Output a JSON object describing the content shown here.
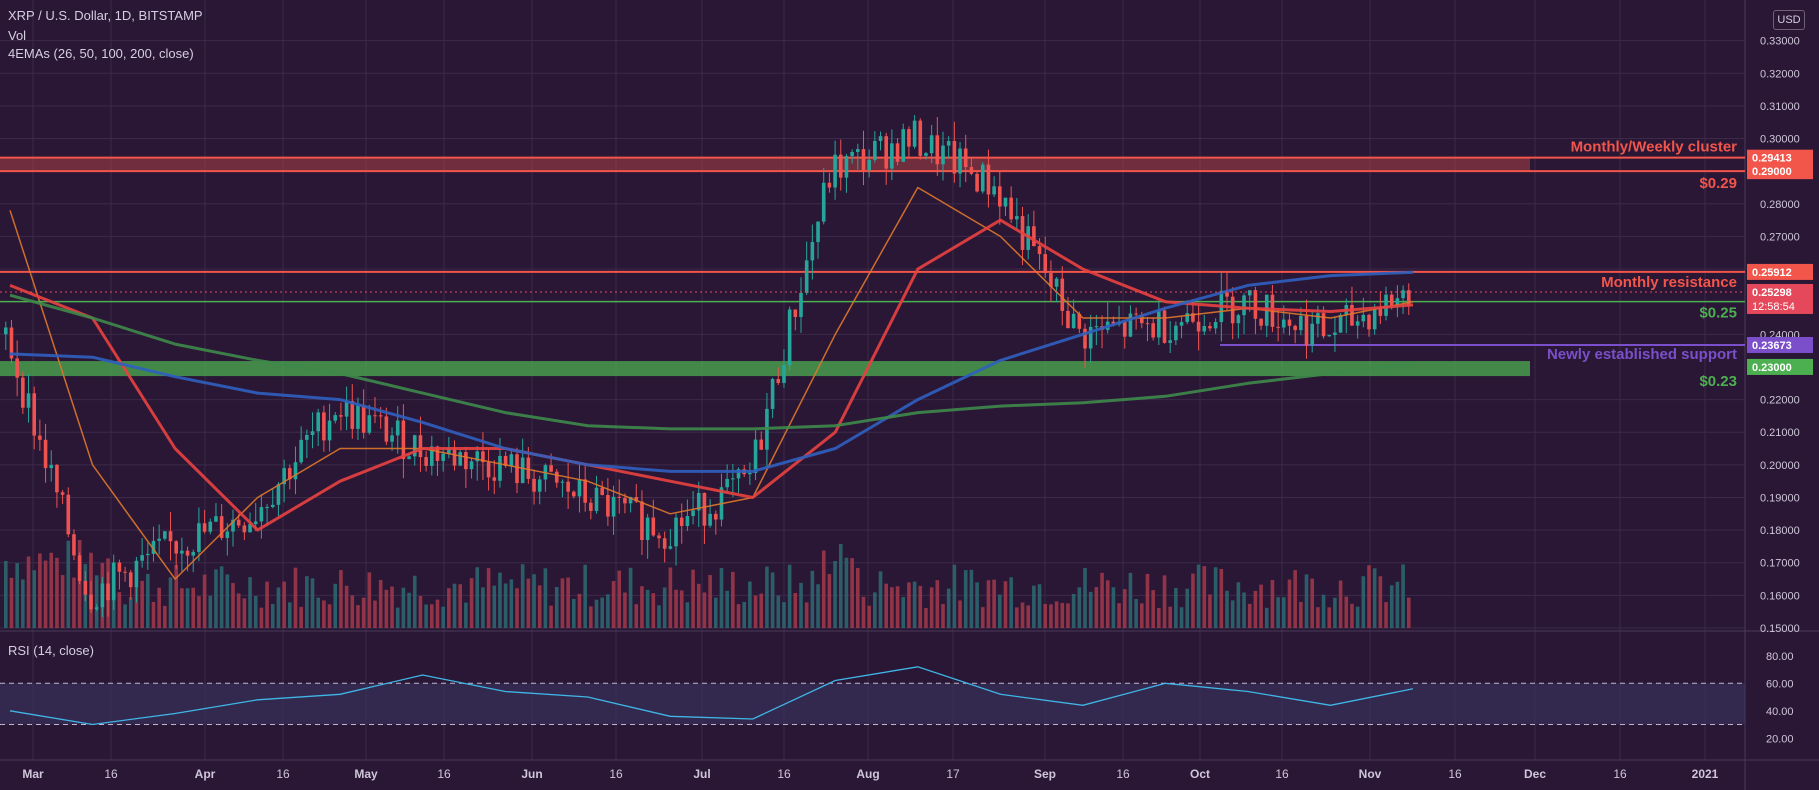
{
  "header": {
    "symbol_line": "XRP / U.S. Dollar, 1D, BITSTAMP",
    "volume_label": "Vol",
    "ema_label": "4EMAs (26, 50, 100, 200, close)",
    "currency_button": "USD"
  },
  "rsi_panel": {
    "label": "RSI (14, close)",
    "ticks": [
      "80.00",
      "60.00",
      "40.00",
      "20.00"
    ],
    "upper_band": 70,
    "lower_band": 30
  },
  "colors": {
    "background": "#2a1736",
    "grid": "#3b2a48",
    "resistance": "#f2554a",
    "support_green": "#4caf50",
    "support_purple": "#7a4fc9",
    "ema26": "#e0782a",
    "ema50": "#e8413f",
    "ema100": "#2f5fbf",
    "ema200": "#3e8a4a",
    "candle_up": "#26a69a",
    "candle_down": "#ef5350",
    "rsi_line": "#3fb6e6"
  },
  "chart_data": {
    "type": "candlestick",
    "title": "XRP / U.S. Dollar, 1D, BITSTAMP",
    "x_tick_labels": [
      "Mar",
      "16",
      "Apr",
      "16",
      "May",
      "16",
      "Jun",
      "16",
      "Jul",
      "16",
      "Aug",
      "17",
      "Sep",
      "16",
      "Oct",
      "16",
      "Nov",
      "16",
      "Dec",
      "16",
      "2021"
    ],
    "y_tick_labels": [
      "0.33000",
      "0.32000",
      "0.31000",
      "0.30000",
      "0.28000",
      "0.27000",
      "0.26000",
      "0.24000",
      "0.22000",
      "0.21000",
      "0.20000",
      "0.19000",
      "0.18000",
      "0.17000",
      "0.16000",
      "0.15000"
    ],
    "ylim": [
      0.15,
      0.34
    ],
    "levels": [
      {
        "label": "Monthly/Weekly cluster",
        "price_tag": "0.29413",
        "value": 0.29413,
        "kind": "zone_top"
      },
      {
        "label": "$0.29",
        "price_tag": "0.29000",
        "value": 0.29,
        "kind": "zone_bottom"
      },
      {
        "label": "Monthly resistance",
        "price_tag": "0.25912",
        "value": 0.25912,
        "kind": "resistance"
      },
      {
        "label": "$0.25",
        "price_tag": "0.25000",
        "value": 0.25,
        "kind": "support_green"
      },
      {
        "label": "Newly established support",
        "price_tag": "0.23673",
        "value": 0.23673,
        "kind": "support_purple"
      },
      {
        "label": "$0.23",
        "price_tag": "0.23000",
        "value": 0.23,
        "kind": "support_green_zone"
      }
    ],
    "last_price": {
      "value": "0.25298",
      "countdown": "12:58:54"
    },
    "key_closes": [
      {
        "date": "Mar",
        "close": 0.24
      },
      {
        "date": "Mar 16",
        "close": 0.16
      },
      {
        "date": "Apr",
        "close": 0.175
      },
      {
        "date": "Apr 16",
        "close": 0.185
      },
      {
        "date": "May",
        "close": 0.218
      },
      {
        "date": "May 16",
        "close": 0.205
      },
      {
        "date": "Jun",
        "close": 0.2
      },
      {
        "date": "Jun 16",
        "close": 0.19
      },
      {
        "date": "Jul",
        "close": 0.18
      },
      {
        "date": "Jul 16",
        "close": 0.195
      },
      {
        "date": "Aug",
        "close": 0.29
      },
      {
        "date": "Aug 17",
        "close": 0.3
      },
      {
        "date": "Sep",
        "close": 0.285
      },
      {
        "date": "Sep 16",
        "close": 0.24
      },
      {
        "date": "Oct",
        "close": 0.243
      },
      {
        "date": "Oct 16",
        "close": 0.25
      },
      {
        "date": "Nov",
        "close": 0.24
      },
      {
        "date": "Nov 8",
        "close": 0.253
      }
    ],
    "series": [
      {
        "name": "EMA 26",
        "values": [
          0.278,
          0.2,
          0.165,
          0.19,
          0.205,
          0.205,
          0.2,
          0.195,
          0.185,
          0.19,
          0.24,
          0.285,
          0.27,
          0.245,
          0.245,
          0.248,
          0.245,
          0.25
        ]
      },
      {
        "name": "EMA 50",
        "values": [
          0.255,
          0.245,
          0.205,
          0.18,
          0.195,
          0.205,
          0.205,
          0.2,
          0.195,
          0.19,
          0.21,
          0.26,
          0.275,
          0.26,
          0.25,
          0.248,
          0.247,
          0.249
        ]
      },
      {
        "name": "EMA 100",
        "values": [
          0.234,
          0.233,
          0.227,
          0.222,
          0.22,
          0.213,
          0.205,
          0.2,
          0.198,
          0.198,
          0.205,
          0.22,
          0.232,
          0.24,
          0.248,
          0.255,
          0.258,
          0.259
        ]
      },
      {
        "name": "EMA 200",
        "values": [
          0.252,
          0.245,
          0.237,
          0.232,
          0.228,
          0.222,
          0.216,
          0.212,
          0.211,
          0.211,
          0.212,
          0.216,
          0.218,
          0.219,
          0.221,
          0.225,
          0.228,
          0.231
        ]
      }
    ],
    "rsi_values": [
      40,
      30,
      38,
      48,
      52,
      66,
      54,
      50,
      36,
      34,
      62,
      72,
      52,
      44,
      60,
      54,
      44,
      56
    ]
  }
}
